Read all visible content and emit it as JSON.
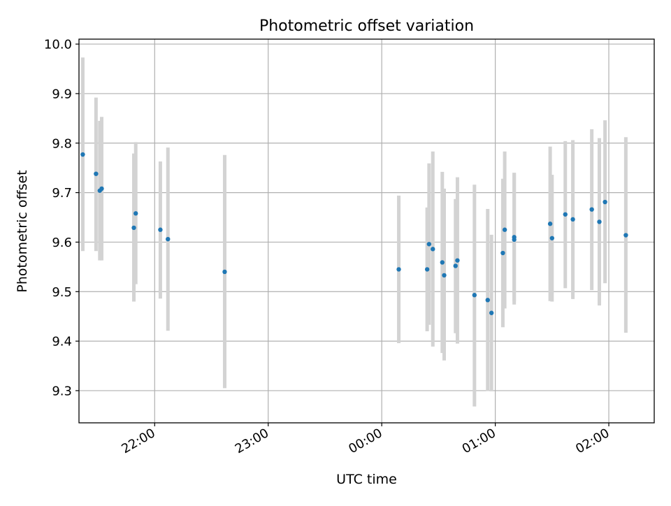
{
  "chart_data": {
    "type": "scatter",
    "title": "Photometric offset variation",
    "xlabel": "UTC time",
    "ylabel": "Photometric offset",
    "x_ticks": [
      "22:00",
      "23:00",
      "00:00",
      "01:00",
      "02:00"
    ],
    "y_ticks": [
      "9.3",
      "9.4",
      "9.5",
      "9.6",
      "9.7",
      "9.8",
      "9.9",
      "10.0"
    ],
    "xlim": [
      "21:20",
      "02:24"
    ],
    "ylim": [
      9.235,
      10.01
    ],
    "grid": true,
    "legend": "none",
    "colors": {
      "points": "#1f77b4",
      "error_bars": "#d3d3d3",
      "grid": "#b0b0b0"
    },
    "points": [
      {
        "t": "21:22",
        "y": 9.777,
        "lo": 9.582,
        "hi": 9.973
      },
      {
        "t": "21:29",
        "y": 9.738,
        "lo": 9.582,
        "hi": 9.892
      },
      {
        "t": "21:31",
        "y": 9.704,
        "lo": 9.563,
        "hi": 9.845
      },
      {
        "t": "21:32",
        "y": 9.708,
        "lo": 9.563,
        "hi": 9.853
      },
      {
        "t": "21:49",
        "y": 9.629,
        "lo": 9.48,
        "hi": 9.779
      },
      {
        "t": "21:50",
        "y": 9.658,
        "lo": 9.515,
        "hi": 9.802
      },
      {
        "t": "22:03",
        "y": 9.625,
        "lo": 9.486,
        "hi": 9.763
      },
      {
        "t": "22:07",
        "y": 9.606,
        "lo": 9.421,
        "hi": 9.791
      },
      {
        "t": "22:37",
        "y": 9.54,
        "lo": 9.305,
        "hi": 9.776
      },
      {
        "t": "00:09",
        "y": 9.545,
        "lo": 9.396,
        "hi": 9.694
      },
      {
        "t": "00:24",
        "y": 9.545,
        "lo": 9.42,
        "hi": 9.67
      },
      {
        "t": "00:25",
        "y": 9.596,
        "lo": 9.433,
        "hi": 9.759
      },
      {
        "t": "00:27",
        "y": 9.586,
        "lo": 9.389,
        "hi": 9.783
      },
      {
        "t": "00:32",
        "y": 9.559,
        "lo": 9.376,
        "hi": 9.742
      },
      {
        "t": "00:33",
        "y": 9.533,
        "lo": 9.361,
        "hi": 9.708
      },
      {
        "t": "00:39",
        "y": 9.552,
        "lo": 9.416,
        "hi": 9.687
      },
      {
        "t": "00:40",
        "y": 9.563,
        "lo": 9.395,
        "hi": 9.731
      },
      {
        "t": "00:49",
        "y": 9.493,
        "lo": 9.268,
        "hi": 9.716
      },
      {
        "t": "00:56",
        "y": 9.483,
        "lo": 9.299,
        "hi": 9.667
      },
      {
        "t": "00:58",
        "y": 9.457,
        "lo": 9.3,
        "hi": 9.615
      },
      {
        "t": "01:04",
        "y": 9.578,
        "lo": 9.428,
        "hi": 9.728
      },
      {
        "t": "01:05",
        "y": 9.625,
        "lo": 9.466,
        "hi": 9.783
      },
      {
        "t": "01:10",
        "y": 9.605,
        "lo": 9.474,
        "hi": 9.74
      },
      {
        "t": "01:10",
        "y": 9.61,
        "lo": 9.48,
        "hi": 9.74
      },
      {
        "t": "01:29",
        "y": 9.637,
        "lo": 9.481,
        "hi": 9.793
      },
      {
        "t": "01:30",
        "y": 9.608,
        "lo": 9.48,
        "hi": 9.736
      },
      {
        "t": "01:37",
        "y": 9.656,
        "lo": 9.507,
        "hi": 9.804
      },
      {
        "t": "01:41",
        "y": 9.646,
        "lo": 9.485,
        "hi": 9.806
      },
      {
        "t": "01:51",
        "y": 9.666,
        "lo": 9.503,
        "hi": 9.828
      },
      {
        "t": "01:55",
        "y": 9.641,
        "lo": 9.472,
        "hi": 9.81
      },
      {
        "t": "01:58",
        "y": 9.681,
        "lo": 9.517,
        "hi": 9.846
      },
      {
        "t": "02:09",
        "y": 9.614,
        "lo": 9.417,
        "hi": 9.812
      }
    ]
  }
}
